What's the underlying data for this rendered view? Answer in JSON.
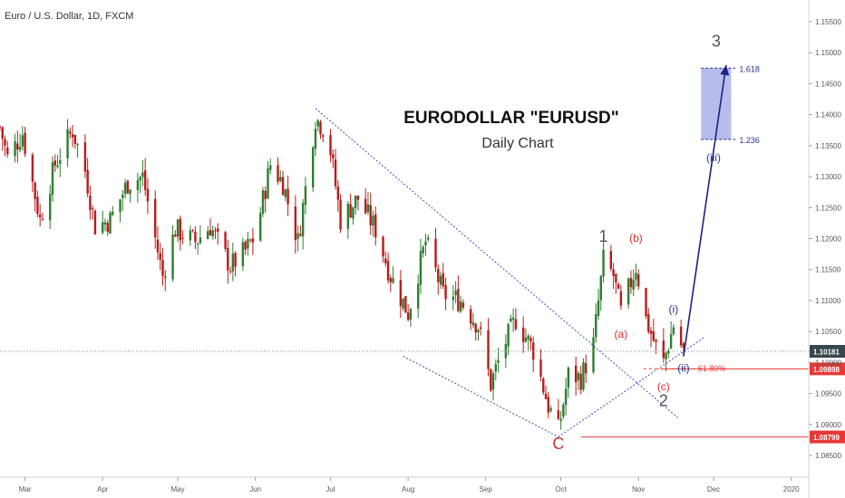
{
  "header": {
    "symbol_label": "Euro / U.S. Dollar, 1D, FXCM"
  },
  "annotations": {
    "title": "EURODOLLAR \"EURUSD\"",
    "subtitle": "Daily Chart",
    "wave_labels": [
      {
        "text": "1",
        "color": "#555555",
        "date": "2019-10-18",
        "price": 1.1195
      },
      {
        "text": "(b)",
        "color": "#d32f2f",
        "date": "2019-10-31",
        "price": 1.1195
      },
      {
        "text": "(a)",
        "color": "#d32f2f",
        "date": "2019-10-25",
        "price": 1.104
      },
      {
        "text": "(c)",
        "color": "#d32f2f",
        "date": "2019-11-11",
        "price": 1.0955
      },
      {
        "text": "2",
        "color": "#555555",
        "date": "2019-11-11",
        "price": 1.093
      },
      {
        "text": "(i)",
        "color": "#283593",
        "date": "2019-11-15",
        "price": 1.108
      },
      {
        "text": "(ii)",
        "color": "#283593",
        "date": "2019-11-19",
        "price": 1.0985
      },
      {
        "text": "(iii)",
        "color": "#283593",
        "date": "2019-12-01",
        "price": 1.1325
      },
      {
        "text": "3",
        "color": "#555555",
        "date": "2019-12-02",
        "price": 1.151
      },
      {
        "text": "C",
        "color": "#d32f2f",
        "date": "2019-09-30",
        "price": 1.086
      }
    ],
    "fib_level_label": "61.80%",
    "target_box": {
      "upper_label": "1.618",
      "lower_label": "1.236",
      "upper_price": 1.1475,
      "lower_price": 1.136,
      "start_date": "2019-11-26",
      "end_date": "2019-12-08"
    },
    "current_price": "1.10181",
    "level_tags": [
      {
        "label": "1.09898",
        "price": 1.09898,
        "color": "#e53935"
      },
      {
        "label": "1.08799",
        "price": 1.08799,
        "color": "#e53935"
      }
    ],
    "price_line": {
      "label": "1.10181",
      "price": 1.10181
    }
  },
  "chart_data": {
    "type": "candlestick",
    "title": "Euro / U.S. Dollar, 1D, FXCM",
    "xlabel": "",
    "ylabel": "",
    "x_range": [
      "2019-02-19",
      "2020-01-08"
    ],
    "ylim": [
      1.0815,
      1.1585
    ],
    "y_ticks": [
      "1.08500",
      "1.09000",
      "1.09500",
      "1.10000",
      "1.10500",
      "1.11000",
      "1.11500",
      "1.12000",
      "1.12500",
      "1.13000",
      "1.13500",
      "1.14000",
      "1.14500",
      "1.15000",
      "1.15500"
    ],
    "x_ticks": [
      {
        "label": "Mar",
        "date": "2019-03-01"
      },
      {
        "label": "Apr",
        "date": "2019-04-01"
      },
      {
        "label": "May",
        "date": "2019-05-01"
      },
      {
        "label": "Jun",
        "date": "2019-06-01"
      },
      {
        "label": "Jul",
        "date": "2019-07-01"
      },
      {
        "label": "Aug",
        "date": "2019-08-01"
      },
      {
        "label": "Sep",
        "date": "2019-09-01"
      },
      {
        "label": "Oct",
        "date": "2019-10-01"
      },
      {
        "label": "Nov",
        "date": "2019-11-01"
      },
      {
        "label": "Dec",
        "date": "2019-12-01"
      },
      {
        "label": "2020",
        "date": "2020-01-01"
      }
    ],
    "grid": false,
    "up_color": "#2e7d32",
    "down_color": "#b71c1c",
    "close_path": [
      [
        "2019-02-19",
        1.138
      ],
      [
        "2019-02-22",
        1.133
      ],
      [
        "2019-02-28",
        1.137
      ],
      [
        "2019-03-07",
        1.123
      ],
      [
        "2019-03-13",
        1.132
      ],
      [
        "2019-03-20",
        1.1375
      ],
      [
        "2019-03-25",
        1.131
      ],
      [
        "2019-03-29",
        1.122
      ],
      [
        "2019-04-04",
        1.123
      ],
      [
        "2019-04-11",
        1.129
      ],
      [
        "2019-04-17",
        1.13
      ],
      [
        "2019-04-25",
        1.114
      ],
      [
        "2019-04-30",
        1.1215
      ],
      [
        "2019-05-08",
        1.1195
      ],
      [
        "2019-05-14",
        1.122
      ],
      [
        "2019-05-22",
        1.1155
      ],
      [
        "2019-05-28",
        1.118
      ],
      [
        "2019-06-01",
        1.1205
      ],
      [
        "2019-06-07",
        1.132
      ],
      [
        "2019-06-12",
        1.129
      ],
      [
        "2019-06-18",
        1.1195
      ],
      [
        "2019-06-25",
        1.1395
      ],
      [
        "2019-06-30",
        1.137
      ],
      [
        "2019-07-05",
        1.123
      ],
      [
        "2019-07-12",
        1.1265
      ],
      [
        "2019-07-19",
        1.1215
      ],
      [
        "2019-07-25",
        1.114
      ],
      [
        "2019-08-01",
        1.108
      ],
      [
        "2019-08-08",
        1.1195
      ],
      [
        "2019-08-15",
        1.111
      ],
      [
        "2019-08-22",
        1.11
      ],
      [
        "2019-08-29",
        1.106
      ],
      [
        "2019-09-03",
        1.0965
      ],
      [
        "2019-09-08",
        1.1025
      ],
      [
        "2019-09-13",
        1.107
      ],
      [
        "2019-09-20",
        1.102
      ],
      [
        "2019-09-26",
        1.093
      ],
      [
        "2019-09-30",
        1.089
      ],
      [
        "2019-10-04",
        1.098
      ],
      [
        "2019-10-09",
        1.0975
      ],
      [
        "2019-10-14",
        1.103
      ],
      [
        "2019-10-18",
        1.1165
      ],
      [
        "2019-10-22",
        1.114
      ],
      [
        "2019-10-25",
        1.108
      ],
      [
        "2019-10-31",
        1.1155
      ],
      [
        "2019-11-04",
        1.107
      ],
      [
        "2019-11-08",
        1.1025
      ],
      [
        "2019-11-11",
        1.1
      ],
      [
        "2019-11-15",
        1.106
      ],
      [
        "2019-11-19",
        1.1018
      ]
    ],
    "overlays": {
      "channel_upper": [
        [
          "2019-06-25",
          1.141
        ],
        [
          "2019-11-17",
          1.091
        ]
      ],
      "channel_lower": [
        [
          "2019-07-30",
          1.101
        ],
        [
          "2019-09-30",
          1.088
        ]
      ],
      "trendline": [
        [
          "2019-09-30",
          1.088
        ],
        [
          "2019-11-27",
          1.104
        ]
      ],
      "impulse_arrow": [
        [
          "2019-11-19",
          1.101
        ],
        [
          "2019-12-06",
          1.148
        ]
      ],
      "red_line_1": [
        [
          "2019-10-09",
          1.08799
        ],
        [
          "2020-01-08",
          1.08799
        ]
      ],
      "red_line_2": [
        [
          "2019-11-10",
          1.09898
        ],
        [
          "2020-01-08",
          1.09898
        ]
      ],
      "fib_dashed": [
        [
          "2019-11-03",
          1.099
        ],
        [
          "2019-11-24",
          1.099
        ]
      ]
    }
  }
}
